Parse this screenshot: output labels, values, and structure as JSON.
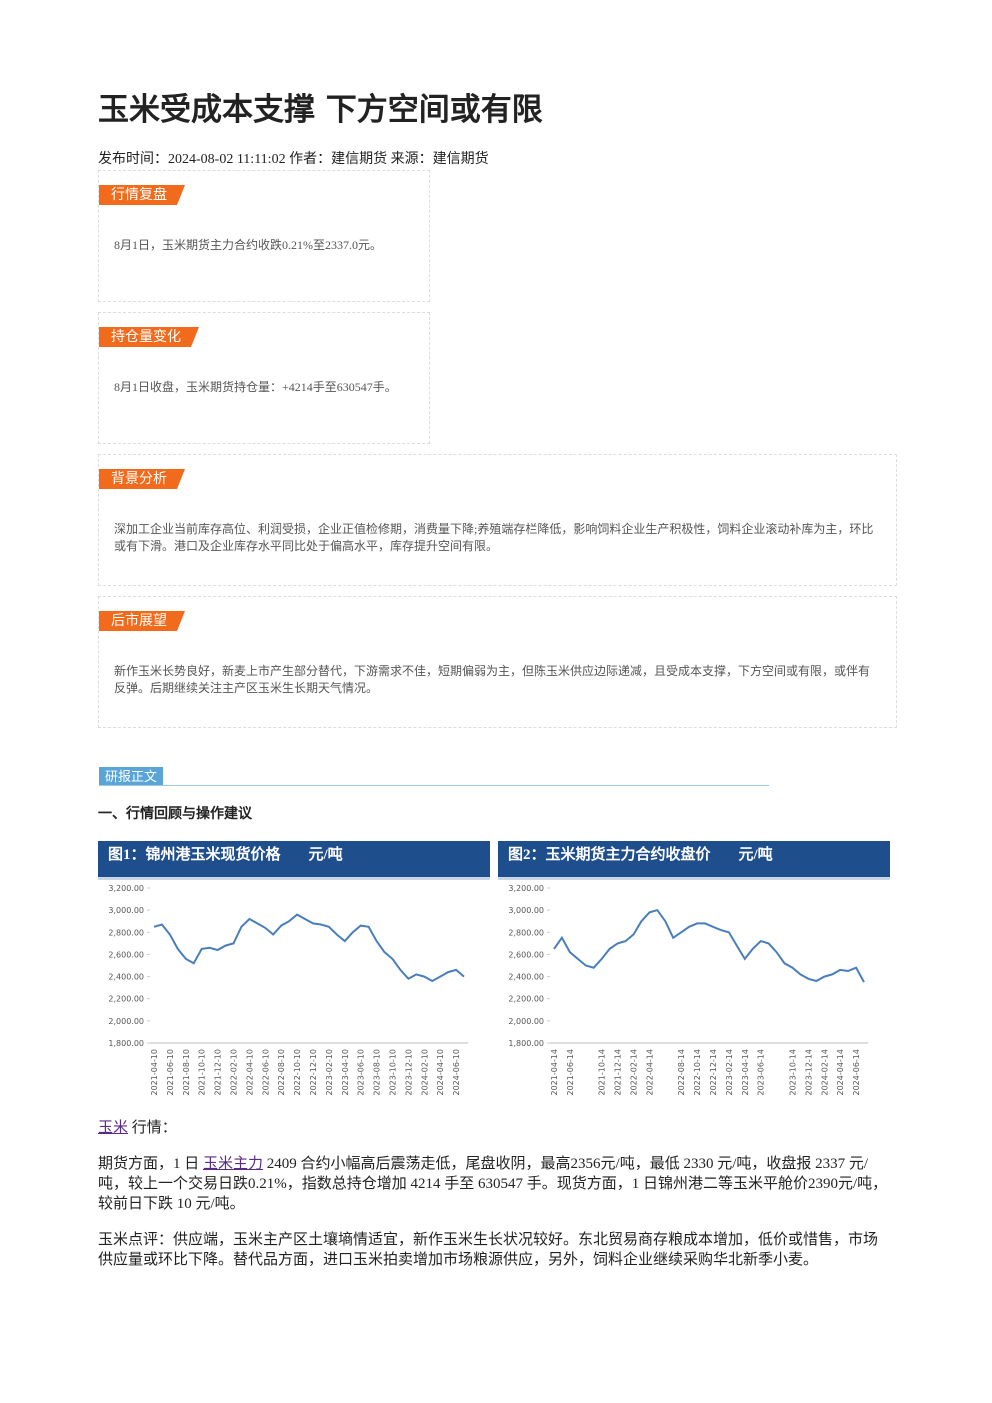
{
  "header": {
    "title": "玉米受成本支撑 下方空间或有限",
    "meta": "发布时间：2024-08-02 11:11:02 作者：建信期货 来源：建信期货"
  },
  "sections": [
    {
      "label": "行情复盘",
      "text": "8月1日，玉米期货主力合约收跌0.21%至2337.0元。"
    },
    {
      "label": "持仓量变化",
      "text": "8月1日收盘，玉米期货持仓量：+4214手至630547手。"
    },
    {
      "label": "背景分析",
      "text": "深加工企业当前库存高位、利润受损，企业正值检修期，消费量下降;养殖端存栏降低，影响饲料企业生产积极性，饲料企业滚动补库为主，环比或有下滑。港口及企业库存水平同比处于偏高水平，库存提升空间有限。"
    },
    {
      "label": "后市展望",
      "text": "新作玉米长势良好，新麦上市产生部分替代，下游需求不佳，短期偏弱为主，但陈玉米供应边际递减，且受成本支撑，下方空间或有限，或伴有反弹。后期继续关注主产区玉米生长期天气情况。"
    }
  ],
  "report_label": "研报正文",
  "heading": "一、行情回顾与操作建议",
  "chart_data": [
    {
      "type": "line",
      "title": "图1：锦州港玉米现货价格",
      "unit": "元/吨",
      "color": "#4a7ebb",
      "categories": [
        "2021-04-10",
        null,
        "2021-06-10",
        null,
        "2021-08-10",
        null,
        "2021-10-10",
        null,
        "2021-12-10",
        null,
        "2022-02-10",
        null,
        "2022-04-10",
        null,
        "2022-06-10",
        null,
        "2022-08-10",
        null,
        "2022-10-10",
        null,
        "2022-12-10",
        null,
        "2023-02-10",
        null,
        "2023-04-10",
        null,
        "2023-06-10",
        null,
        "2023-08-10",
        null,
        "2023-10-10",
        null,
        "2023-12-10",
        null,
        "2024-02-10",
        null,
        "2024-04-10",
        null,
        "2024-06-10",
        null
      ],
      "values": [
        2850,
        2870,
        2780,
        2650,
        2560,
        2520,
        2650,
        2660,
        2640,
        2680,
        2700,
        2850,
        2920,
        2880,
        2840,
        2780,
        2860,
        2900,
        2960,
        2920,
        2880,
        2870,
        2850,
        2780,
        2720,
        2800,
        2860,
        2850,
        2720,
        2620,
        2560,
        2460,
        2380,
        2420,
        2400,
        2360,
        2400,
        2440,
        2460,
        2400
      ],
      "ylim": [
        1800,
        3200
      ],
      "yticks": [
        {
          "value": 1800,
          "label": "1,800.00"
        },
        {
          "value": 2000,
          "label": "2,000.00"
        },
        {
          "value": 2200,
          "label": "2,200.00"
        },
        {
          "value": 2400,
          "label": "2,400.00"
        },
        {
          "value": 2600,
          "label": "2,600.00"
        },
        {
          "value": 2800,
          "label": "2,800.00"
        },
        {
          "value": 3000,
          "label": "3,000.00"
        },
        {
          "value": 3200,
          "label": "3,200.00"
        }
      ]
    },
    {
      "type": "line",
      "title": "图2：玉米期货主力合约收盘价",
      "unit": "元/吨",
      "color": "#4a7ebb",
      "categories": [
        "2021-04-14",
        null,
        "2021-06-14",
        null,
        null,
        null,
        "2021-10-14",
        null,
        "2021-12-14",
        null,
        "2022-02-14",
        null,
        "2022-04-14",
        null,
        null,
        null,
        "2022-08-14",
        null,
        "2022-10-14",
        null,
        "2022-12-14",
        null,
        "2023-02-14",
        null,
        "2023-04-14",
        null,
        "2023-06-14",
        null,
        null,
        null,
        "2023-10-14",
        null,
        "2023-12-14",
        null,
        "2024-02-14",
        null,
        "2024-04-14",
        null,
        "2024-06-14",
        null
      ],
      "values": [
        2650,
        2750,
        2620,
        2560,
        2500,
        2480,
        2560,
        2650,
        2700,
        2720,
        2780,
        2900,
        2980,
        3000,
        2900,
        2750,
        2800,
        2850,
        2880,
        2880,
        2850,
        2820,
        2800,
        2680,
        2560,
        2650,
        2720,
        2700,
        2620,
        2520,
        2480,
        2420,
        2380,
        2360,
        2400,
        2420,
        2460,
        2450,
        2480,
        2350
      ],
      "ylim": [
        1800,
        3200
      ],
      "yticks": [
        {
          "value": 1800,
          "label": "1,800.00"
        },
        {
          "value": 2000,
          "label": "2,000.00"
        },
        {
          "value": 2200,
          "label": "2,200.00"
        },
        {
          "value": 2400,
          "label": "2,400.00"
        },
        {
          "value": 2600,
          "label": "2,600.00"
        },
        {
          "value": 2800,
          "label": "2,800.00"
        },
        {
          "value": 3000,
          "label": "3,000.00"
        },
        {
          "value": 3200,
          "label": "3,200.00"
        }
      ]
    }
  ],
  "paragraphs": [
    {
      "link": "玉米",
      "after": "行情："
    },
    {
      "before": "期货方面，1 日 ",
      "link": "玉米主力",
      "after": "2409 合约小幅高后震荡走低，尾盘收阴，最高2356元/吨，最低 2330 元/吨，收盘报 2337 元/吨，较上一个交易日跌0.21%，指数总持仓增加 4214 手至 630547 手。现货方面，1 日锦州港二等玉米平舱价2390元/吨，较前日下跌 10 元/吨。"
    },
    {
      "after": "玉米点评：供应端，玉米主产区土壤墒情适宜，新作玉米生长状况较好。东北贸易商存粮成本增加，低价或惜售，市场供应量或环比下降。替代品方面，进口玉米拍卖增加市场粮源供应，另外，饲料企业继续采购华北新季小麦。"
    }
  ]
}
